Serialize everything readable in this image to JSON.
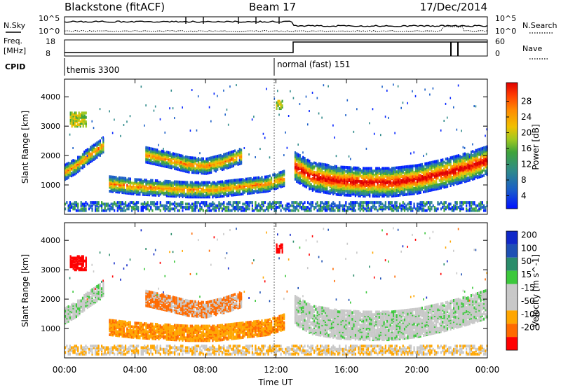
{
  "header": {
    "title": "Blackstone (fitACF)",
    "beam": "Beam 17",
    "date": "17/Dec/2014"
  },
  "noise_panel": {
    "left_label": "N.Sky",
    "right_label": "N.Search",
    "left_ticks": [
      "10^5",
      "10^0"
    ],
    "right_ticks": [
      "10^5",
      "10^0"
    ]
  },
  "freq_panel": {
    "left_label_1": "Freq.",
    "left_label_2": "[MHz]",
    "right_label": "Nave",
    "left_ticks": [
      "18",
      "8"
    ],
    "right_ticks": [
      "60",
      "0"
    ]
  },
  "cpid": {
    "label": "CPID",
    "segments": [
      {
        "name": "themis 3300",
        "start": "00:00",
        "end": "12:00"
      },
      {
        "name": "normal (fast) 151",
        "start": "12:00",
        "end": "24:00"
      }
    ]
  },
  "colors": {
    "power_scale": [
      "#0020ff",
      "#1a5ec8",
      "#2f8a8a",
      "#3fa43a",
      "#a0c820",
      "#f0c000",
      "#ff8c00",
      "#ff4000",
      "#e00000"
    ],
    "velocity_scale": [
      "#ff0000",
      "#ff6a00",
      "#ffa600",
      "#c8c8c8",
      "#c8c8c8",
      "#3cc83c",
      "#2a8c6a",
      "#1e50b4",
      "#1028c8"
    ]
  },
  "chart_data": [
    {
      "type": "heatmap",
      "title": "Power",
      "xlabel": "Time UT",
      "ylabel": "Slant Range [km]",
      "x_ticks": [
        "00:00",
        "04:00",
        "08:00",
        "12:00",
        "16:00",
        "20:00",
        "00:00"
      ],
      "y_ticks": [
        1000,
        2000,
        3000,
        4000
      ],
      "ylim": [
        0,
        4600
      ],
      "xlim_hours": [
        0,
        24
      ],
      "colorbar": {
        "label": "Power [dB]",
        "ticks": [
          4,
          8,
          12,
          16,
          20,
          24,
          28
        ]
      },
      "echo_bands": [
        {
          "t": [
            0,
            0.6,
            1.2,
            1.8,
            2.2
          ],
          "range": [
            1400,
            1600,
            1900,
            2150,
            2300
          ]
        },
        {
          "t": [
            2.5,
            4,
            5.5,
            7,
            8.5,
            10,
            11.5,
            12.5
          ],
          "range": [
            1000,
            900,
            850,
            800,
            800,
            900,
            1000,
            1200
          ]
        },
        {
          "t": [
            4.5,
            6,
            7,
            8,
            9,
            10
          ],
          "range": [
            2000,
            1800,
            1650,
            1600,
            1750,
            1950
          ]
        },
        {
          "t": [
            13,
            14,
            15.5,
            17,
            18.5,
            20,
            21.5,
            23,
            24
          ],
          "range": [
            1600,
            1250,
            1100,
            1050,
            1050,
            1150,
            1350,
            1600,
            1800
          ]
        }
      ]
    },
    {
      "type": "heatmap",
      "title": "Velocity",
      "xlabel": "Time UT",
      "ylabel": "Slant Range [km]",
      "x_ticks": [
        "00:00",
        "04:00",
        "08:00",
        "12:00",
        "16:00",
        "20:00",
        "00:00"
      ],
      "y_ticks": [
        1000,
        2000,
        3000,
        4000
      ],
      "ylim": [
        0,
        4600
      ],
      "xlim_hours": [
        0,
        24
      ],
      "colorbar": {
        "label": "Velocity [m s^-1]",
        "ticks": [
          200,
          100,
          50,
          15,
          -15,
          -50,
          -100,
          -200
        ]
      }
    }
  ]
}
